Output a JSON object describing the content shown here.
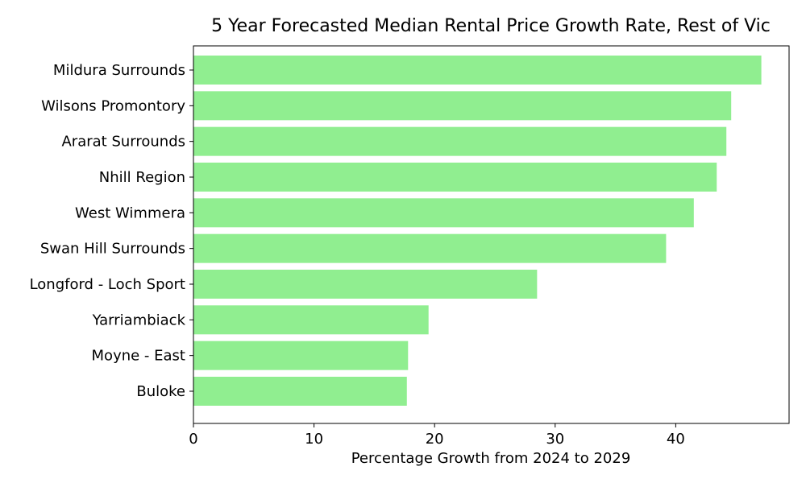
{
  "chart_data": {
    "type": "bar",
    "orientation": "horizontal",
    "title": "5 Year Forecasted Median Rental Price Growth Rate, Rest of Vic",
    "xlabel": "Percentage Growth from 2024 to 2029",
    "ylabel": "",
    "categories": [
      "Mildura Surrounds",
      "Wilsons Promontory",
      "Ararat Surrounds",
      "Nhill Region",
      "West Wimmera",
      "Swan Hill Surrounds",
      "Longford - Loch Sport",
      "Yarriambiack",
      "Moyne - East",
      "Buloke"
    ],
    "values": [
      47.1,
      44.6,
      44.2,
      43.4,
      41.5,
      39.2,
      28.5,
      19.5,
      17.8,
      17.7
    ],
    "xlim": [
      0,
      49.4
    ],
    "xticks": [
      0,
      10,
      20,
      30,
      40
    ],
    "bar_color": "#90ee90",
    "grid": false,
    "legend": "none"
  }
}
